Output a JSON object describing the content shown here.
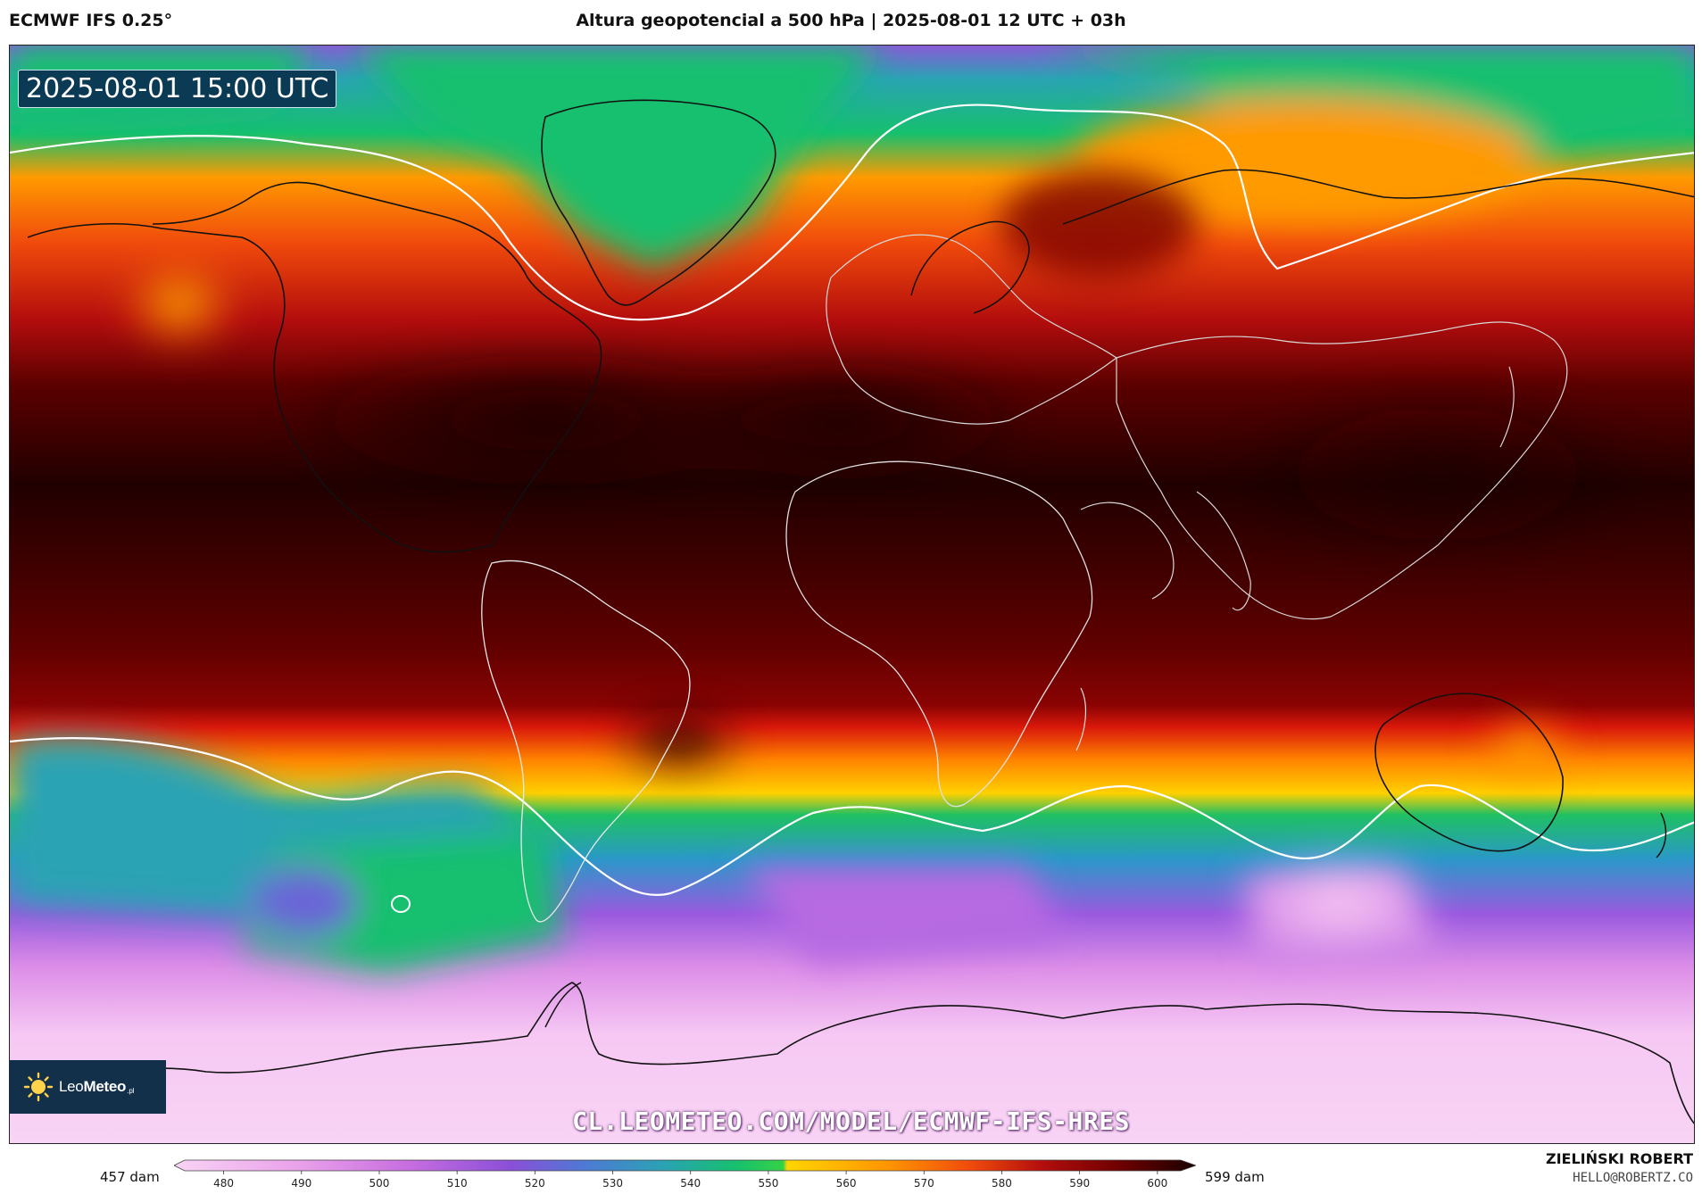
{
  "header": {
    "model": "ECMWF IFS 0.25°",
    "title": "Altura geopotencial a 500 hPa | 2025-08-01 12 UTC + 03h"
  },
  "map": {
    "valid_time": "2025-08-01 15:00 UTC",
    "watermark": "CL.LEOMETEO.COM/MODEL/ECMWF-IFS-HRES",
    "projection": "equirectangular world map"
  },
  "logo": {
    "name_light": "Leo",
    "name_bold": "Meteo",
    "suffix": ".pl"
  },
  "colorbar": {
    "min_label": "457 dam",
    "max_label": "599 dam",
    "ticks": [
      "480",
      "490",
      "500",
      "510",
      "520",
      "530",
      "540",
      "550",
      "560",
      "570",
      "580",
      "590",
      "600"
    ],
    "min_value": 457,
    "max_value": 599,
    "colors": [
      "#f6d0f3",
      "#eaa2ea",
      "#c76de0",
      "#8a4fd8",
      "#4f78d4",
      "#2aa3b4",
      "#16c06e",
      "#35d246",
      "#ffd500",
      "#ff9400",
      "#f04a0c",
      "#b30d0d",
      "#6a0000",
      "#1e0000"
    ]
  },
  "author": {
    "name": "ZIELIŃSKI ROBERT",
    "email": "HELLO@ROBERTZ.CO"
  }
}
